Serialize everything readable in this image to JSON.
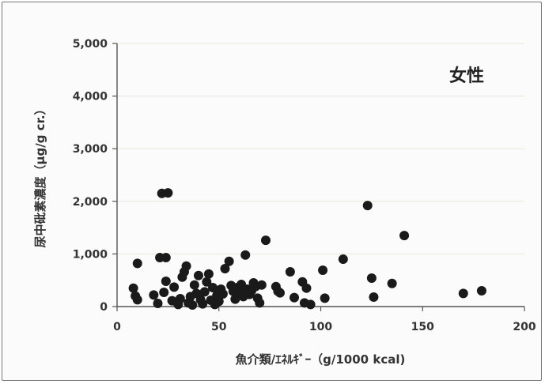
{
  "chart_data": {
    "type": "scatter",
    "annotation": "女性",
    "xlabel": "魚介類/ｴﾈﾙｷﾞｰ（g/1000 kcal)",
    "ylabel": "尿中砒素濃度（μg/g cr.）",
    "xlim": [
      0,
      200
    ],
    "ylim": [
      0,
      5000
    ],
    "x_ticks": [
      "0",
      "50",
      "100",
      "150",
      "200"
    ],
    "y_ticks": [
      "0",
      "1,000",
      "2,000",
      "3,000",
      "4,000",
      "5,000"
    ],
    "grid": "horizontal",
    "marker_color": "#1a1a1a",
    "points": [
      {
        "x": 8,
        "y": 350
      },
      {
        "x": 9,
        "y": 200
      },
      {
        "x": 10,
        "y": 820
      },
      {
        "x": 10,
        "y": 130
      },
      {
        "x": 18,
        "y": 220
      },
      {
        "x": 20,
        "y": 60
      },
      {
        "x": 21,
        "y": 930
      },
      {
        "x": 22,
        "y": 2150
      },
      {
        "x": 23,
        "y": 270
      },
      {
        "x": 24,
        "y": 930
      },
      {
        "x": 24,
        "y": 480
      },
      {
        "x": 25,
        "y": 2160
      },
      {
        "x": 27,
        "y": 110
      },
      {
        "x": 28,
        "y": 370
      },
      {
        "x": 30,
        "y": 40
      },
      {
        "x": 31,
        "y": 150
      },
      {
        "x": 32,
        "y": 560
      },
      {
        "x": 33,
        "y": 660
      },
      {
        "x": 34,
        "y": 770
      },
      {
        "x": 35,
        "y": 70
      },
      {
        "x": 36,
        "y": 190
      },
      {
        "x": 37,
        "y": 30
      },
      {
        "x": 38,
        "y": 410
      },
      {
        "x": 39,
        "y": 250
      },
      {
        "x": 40,
        "y": 590
      },
      {
        "x": 41,
        "y": 130
      },
      {
        "x": 42,
        "y": 50
      },
      {
        "x": 43,
        "y": 280
      },
      {
        "x": 44,
        "y": 470
      },
      {
        "x": 45,
        "y": 620
      },
      {
        "x": 46,
        "y": 120
      },
      {
        "x": 47,
        "y": 360
      },
      {
        "x": 48,
        "y": 40
      },
      {
        "x": 49,
        "y": 210
      },
      {
        "x": 50,
        "y": 100
      },
      {
        "x": 51,
        "y": 330
      },
      {
        "x": 52,
        "y": 240
      },
      {
        "x": 53,
        "y": 720
      },
      {
        "x": 55,
        "y": 860
      },
      {
        "x": 56,
        "y": 400
      },
      {
        "x": 57,
        "y": 290
      },
      {
        "x": 58,
        "y": 140
      },
      {
        "x": 59,
        "y": 360
      },
      {
        "x": 60,
        "y": 280
      },
      {
        "x": 61,
        "y": 420
      },
      {
        "x": 62,
        "y": 190
      },
      {
        "x": 63,
        "y": 980
      },
      {
        "x": 64,
        "y": 330
      },
      {
        "x": 65,
        "y": 230
      },
      {
        "x": 66,
        "y": 300
      },
      {
        "x": 67,
        "y": 450
      },
      {
        "x": 68,
        "y": 380
      },
      {
        "x": 69,
        "y": 160
      },
      {
        "x": 70,
        "y": 70
      },
      {
        "x": 71,
        "y": 410
      },
      {
        "x": 73,
        "y": 1260
      },
      {
        "x": 78,
        "y": 380
      },
      {
        "x": 79,
        "y": 290
      },
      {
        "x": 80,
        "y": 260
      },
      {
        "x": 85,
        "y": 660
      },
      {
        "x": 87,
        "y": 170
      },
      {
        "x": 91,
        "y": 470
      },
      {
        "x": 92,
        "y": 70
      },
      {
        "x": 93,
        "y": 350
      },
      {
        "x": 95,
        "y": 40
      },
      {
        "x": 101,
        "y": 690
      },
      {
        "x": 102,
        "y": 160
      },
      {
        "x": 111,
        "y": 900
      },
      {
        "x": 123,
        "y": 1920
      },
      {
        "x": 125,
        "y": 540
      },
      {
        "x": 126,
        "y": 180
      },
      {
        "x": 135,
        "y": 440
      },
      {
        "x": 141,
        "y": 1350
      },
      {
        "x": 170,
        "y": 250
      },
      {
        "x": 179,
        "y": 300
      }
    ]
  }
}
